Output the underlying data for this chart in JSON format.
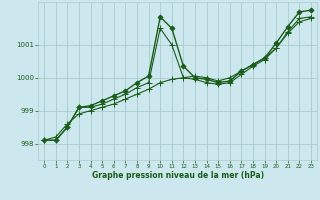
{
  "title": "Graphe pression niveau de la mer (hPa)",
  "bg_color": "#cce8ee",
  "grid_color": "#aacccc",
  "line_color": "#1a5c1a",
  "xlim": [
    -0.5,
    23.5
  ],
  "ylim": [
    997.5,
    1002.3
  ],
  "yticks": [
    998,
    999,
    1000,
    1001
  ],
  "xticks": [
    0,
    1,
    2,
    3,
    4,
    5,
    6,
    7,
    8,
    9,
    10,
    11,
    12,
    13,
    14,
    15,
    16,
    17,
    18,
    19,
    20,
    21,
    22,
    23
  ],
  "series": [
    {
      "x": [
        0,
        1,
        2,
        3,
        4,
        5,
        6,
        7,
        8,
        9,
        10,
        11,
        12,
        13,
        14,
        15,
        16,
        17,
        18,
        19,
        20,
        21,
        22,
        23
      ],
      "y": [
        998.1,
        998.1,
        998.5,
        999.1,
        999.15,
        999.3,
        999.45,
        999.6,
        999.85,
        1000.05,
        1001.85,
        1001.5,
        1000.35,
        1000.0,
        999.95,
        999.85,
        999.9,
        1000.2,
        1000.4,
        1000.6,
        1001.05,
        1001.55,
        1002.0,
        1002.05
      ],
      "marker": "D",
      "ms": 2.5,
      "lw": 1.0
    },
    {
      "x": [
        0,
        1,
        2,
        3,
        4,
        5,
        6,
        7,
        8,
        9,
        10,
        11,
        12,
        13,
        14,
        15,
        16,
        17,
        18,
        19,
        20,
        21,
        22,
        23
      ],
      "y": [
        998.1,
        998.1,
        998.5,
        999.1,
        999.1,
        999.2,
        999.35,
        999.5,
        999.7,
        999.85,
        1001.5,
        1001.0,
        1000.0,
        999.95,
        999.85,
        999.8,
        999.85,
        1000.1,
        1000.35,
        1000.55,
        1000.9,
        1001.4,
        1001.8,
        1001.85
      ],
      "marker": "+",
      "ms": 4.0,
      "lw": 0.8
    },
    {
      "x": [
        0,
        1,
        2,
        3,
        4,
        5,
        6,
        7,
        8,
        9,
        10,
        11,
        12,
        13,
        14,
        15,
        16,
        17,
        18,
        19,
        20,
        21,
        22,
        23
      ],
      "y": [
        998.1,
        998.2,
        998.6,
        998.9,
        999.0,
        999.1,
        999.2,
        999.35,
        999.5,
        999.65,
        999.85,
        999.95,
        1000.0,
        1000.05,
        1000.0,
        999.9,
        1000.0,
        1000.2,
        1000.4,
        1000.6,
        1000.9,
        1001.35,
        1001.7,
        1001.8
      ],
      "marker": "+",
      "ms": 4.0,
      "lw": 0.8
    }
  ]
}
